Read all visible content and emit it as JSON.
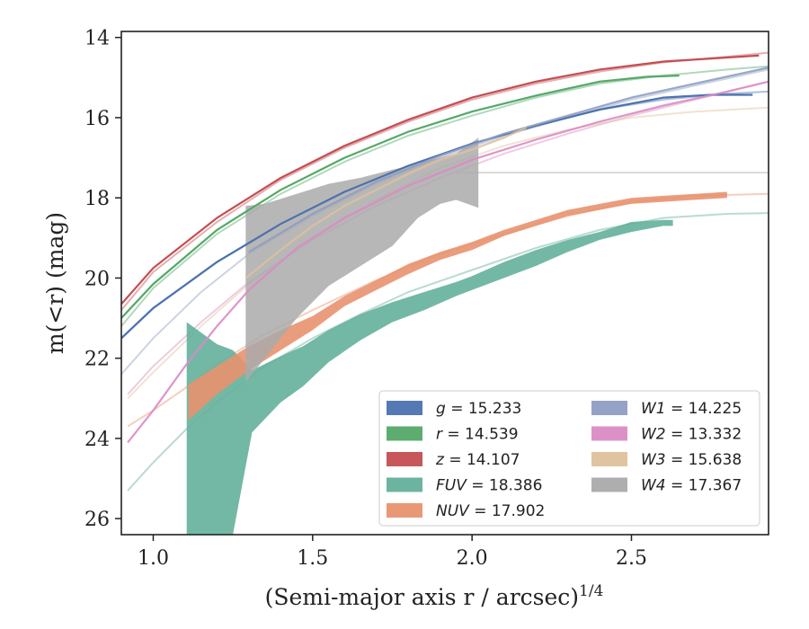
{
  "chart_data": {
    "type": "line",
    "xlabel": "(Semi-major axis r / arcsec)",
    "xlabel_sup": "1/4",
    "ylabel": "m(<r) (mag)",
    "xlim": [
      0.9,
      2.93
    ],
    "ylim": [
      26.4,
      13.85
    ],
    "y_inverted": true,
    "xticks": [
      1.0,
      1.5,
      2.0,
      2.5
    ],
    "xtick_labels": [
      "1.0",
      "1.5",
      "2.0",
      "2.5"
    ],
    "yticks": [
      14,
      16,
      18,
      20,
      22,
      24,
      26
    ],
    "ytick_labels": [
      "14",
      "16",
      "18",
      "20",
      "22",
      "24",
      "26"
    ],
    "grid": false,
    "legend_position": "lower-right",
    "series": [
      {
        "name": "g = 15.233",
        "legend_label": {
          "var": "g",
          "value": "= 15.233"
        },
        "color": "#4c72b0",
        "faint": [
          [
            0.9,
            21.5
          ],
          [
            1.0,
            20.75
          ],
          [
            1.2,
            19.6
          ],
          [
            1.4,
            18.65
          ],
          [
            1.6,
            17.85
          ],
          [
            1.8,
            17.2
          ],
          [
            2.0,
            16.65
          ],
          [
            2.2,
            16.2
          ],
          [
            2.4,
            15.8
          ],
          [
            2.6,
            15.55
          ],
          [
            2.8,
            15.4
          ],
          [
            2.93,
            15.35
          ]
        ],
        "main": [
          [
            0.9,
            21.5
          ],
          [
            1.0,
            20.75
          ],
          [
            1.2,
            19.6
          ],
          [
            1.4,
            18.65
          ],
          [
            1.6,
            17.85
          ],
          [
            1.8,
            17.2
          ],
          [
            2.0,
            16.65
          ],
          [
            2.2,
            16.2
          ],
          [
            2.4,
            15.8
          ],
          [
            2.6,
            15.5
          ],
          [
            2.75,
            15.43
          ],
          [
            2.88,
            15.43
          ]
        ]
      },
      {
        "name": "r = 14.539",
        "legend_label": {
          "var": "r",
          "value": "= 14.539"
        },
        "color": "#55a868",
        "faint": [
          [
            0.9,
            21.2
          ],
          [
            1.0,
            20.25
          ],
          [
            1.2,
            18.9
          ],
          [
            1.4,
            17.9
          ],
          [
            1.6,
            17.1
          ],
          [
            1.8,
            16.45
          ],
          [
            2.0,
            15.95
          ],
          [
            2.2,
            15.5
          ],
          [
            2.4,
            15.15
          ],
          [
            2.6,
            14.95
          ],
          [
            2.8,
            14.8
          ],
          [
            2.93,
            14.72
          ]
        ],
        "main": [
          [
            0.9,
            21.0
          ],
          [
            1.0,
            20.15
          ],
          [
            1.2,
            18.8
          ],
          [
            1.4,
            17.8
          ],
          [
            1.6,
            17.0
          ],
          [
            1.8,
            16.35
          ],
          [
            2.0,
            15.85
          ],
          [
            2.2,
            15.45
          ],
          [
            2.4,
            15.1
          ],
          [
            2.55,
            14.98
          ],
          [
            2.65,
            14.95
          ]
        ]
      },
      {
        "name": "z = 14.107",
        "legend_label": {
          "var": "z",
          "value": "= 14.107"
        },
        "color": "#c44e52",
        "faint": [
          [
            0.9,
            20.8
          ],
          [
            1.0,
            19.85
          ],
          [
            1.2,
            18.6
          ],
          [
            1.4,
            17.55
          ],
          [
            1.6,
            16.75
          ],
          [
            1.8,
            16.1
          ],
          [
            2.0,
            15.55
          ],
          [
            2.2,
            15.15
          ],
          [
            2.4,
            14.85
          ],
          [
            2.6,
            14.62
          ],
          [
            2.8,
            14.48
          ],
          [
            2.93,
            14.38
          ]
        ],
        "main": [
          [
            0.9,
            20.65
          ],
          [
            1.0,
            19.75
          ],
          [
            1.2,
            18.5
          ],
          [
            1.4,
            17.5
          ],
          [
            1.6,
            16.7
          ],
          [
            1.8,
            16.05
          ],
          [
            2.0,
            15.5
          ],
          [
            2.2,
            15.1
          ],
          [
            2.4,
            14.8
          ],
          [
            2.6,
            14.6
          ],
          [
            2.8,
            14.5
          ],
          [
            2.9,
            14.45
          ]
        ]
      },
      {
        "name": "FUV = 18.386",
        "legend_label": {
          "var": "FUV",
          "value": "= 18.386"
        },
        "color": "#64b09b",
        "faint": [
          [
            0.92,
            25.3
          ],
          [
            1.0,
            24.6
          ],
          [
            1.1,
            23.8
          ],
          [
            1.2,
            23.1
          ],
          [
            1.35,
            22.2
          ],
          [
            1.5,
            21.5
          ],
          [
            1.65,
            20.9
          ],
          [
            1.8,
            20.35
          ],
          [
            2.0,
            19.8
          ],
          [
            2.2,
            19.25
          ],
          [
            2.4,
            18.8
          ],
          [
            2.6,
            18.5
          ],
          [
            2.8,
            18.4
          ],
          [
            2.93,
            18.38
          ]
        ],
        "band": [
          [
            1.105,
            21.1,
            26.4
          ],
          [
            1.2,
            21.65,
            26.4
          ],
          [
            1.25,
            21.8,
            26.4
          ],
          [
            1.31,
            22.3,
            23.85
          ],
          [
            1.4,
            21.95,
            23.1
          ],
          [
            1.47,
            21.7,
            22.7
          ],
          [
            1.55,
            21.3,
            22.1
          ],
          [
            1.65,
            20.9,
            21.55
          ],
          [
            1.75,
            20.6,
            21.1
          ],
          [
            1.85,
            20.35,
            20.8
          ],
          [
            1.95,
            20.1,
            20.45
          ],
          [
            2.0,
            19.95,
            20.3
          ],
          [
            2.1,
            19.6,
            20.0
          ],
          [
            2.2,
            19.3,
            19.7
          ],
          [
            2.3,
            19.05,
            19.35
          ],
          [
            2.4,
            18.85,
            19.05
          ],
          [
            2.5,
            18.6,
            18.85
          ],
          [
            2.6,
            18.55,
            18.7
          ],
          [
            2.63,
            18.55,
            18.7
          ]
        ]
      },
      {
        "name": "NUV = 17.902",
        "legend_label": {
          "var": "NUV",
          "value": "= 17.902"
        },
        "color": "#e8926f",
        "faint": [
          [
            0.92,
            23.7
          ],
          [
            1.0,
            23.3
          ],
          [
            1.1,
            22.75
          ],
          [
            1.2,
            22.15
          ],
          [
            1.35,
            21.4
          ],
          [
            1.5,
            20.8
          ],
          [
            1.7,
            20.05
          ],
          [
            1.9,
            19.4
          ],
          [
            2.1,
            18.9
          ],
          [
            2.3,
            18.45
          ],
          [
            2.5,
            18.1
          ],
          [
            2.7,
            17.95
          ],
          [
            2.93,
            17.9
          ]
        ],
        "band": [
          [
            1.11,
            22.65,
            23.55
          ],
          [
            1.2,
            22.2,
            22.9
          ],
          [
            1.3,
            21.7,
            22.3
          ],
          [
            1.4,
            21.3,
            21.8
          ],
          [
            1.5,
            20.95,
            21.3
          ],
          [
            1.6,
            20.45,
            20.7
          ],
          [
            1.7,
            20.05,
            20.3
          ],
          [
            1.8,
            19.65,
            19.9
          ],
          [
            1.9,
            19.35,
            19.55
          ],
          [
            2.0,
            19.1,
            19.3
          ],
          [
            2.1,
            18.8,
            18.95
          ],
          [
            2.2,
            18.55,
            18.7
          ],
          [
            2.3,
            18.3,
            18.45
          ],
          [
            2.4,
            18.15,
            18.3
          ],
          [
            2.5,
            18.0,
            18.15
          ],
          [
            2.6,
            17.95,
            18.1
          ],
          [
            2.7,
            17.9,
            18.05
          ],
          [
            2.8,
            17.85,
            18.0
          ]
        ]
      },
      {
        "name": "W1 = 14.225",
        "legend_label": {
          "var": "W1",
          "value": "= 14.225"
        },
        "color": "#8e9dc2",
        "faint": [
          [
            0.9,
            22.4
          ],
          [
            1.0,
            21.5
          ],
          [
            1.15,
            20.35
          ],
          [
            1.3,
            19.4
          ],
          [
            1.5,
            18.45
          ],
          [
            1.7,
            17.65
          ],
          [
            1.9,
            17.0
          ],
          [
            2.1,
            16.45
          ],
          [
            2.3,
            16.0
          ],
          [
            2.5,
            15.55
          ],
          [
            2.7,
            15.2
          ],
          [
            2.93,
            14.8
          ]
        ],
        "main": [
          [
            1.3,
            19.35
          ],
          [
            1.5,
            18.4
          ],
          [
            1.7,
            17.6
          ],
          [
            1.9,
            16.95
          ],
          [
            2.1,
            16.4
          ],
          [
            2.3,
            15.95
          ],
          [
            2.5,
            15.5
          ],
          [
            2.7,
            15.15
          ],
          [
            2.93,
            14.75
          ]
        ]
      },
      {
        "name": "W2 = 13.332",
        "legend_label": {
          "var": "W2",
          "value": "= 13.332"
        },
        "color": "#da8bc3",
        "faint": [
          [
            0.92,
            22.9
          ],
          [
            1.0,
            22.2
          ],
          [
            1.15,
            21.1
          ],
          [
            1.3,
            20.1
          ],
          [
            1.5,
            19.05
          ],
          [
            1.7,
            18.2
          ],
          [
            1.9,
            17.5
          ],
          [
            2.1,
            16.9
          ],
          [
            2.3,
            16.4
          ],
          [
            2.5,
            15.95
          ],
          [
            2.7,
            15.55
          ],
          [
            2.93,
            15.1
          ]
        ],
        "main": [
          [
            0.92,
            24.1
          ],
          [
            1.0,
            23.3
          ],
          [
            1.1,
            22.2
          ],
          [
            1.2,
            21.2
          ],
          [
            1.3,
            20.3
          ],
          [
            1.45,
            19.25
          ],
          [
            1.6,
            18.5
          ],
          [
            1.8,
            17.7
          ],
          [
            2.0,
            17.05
          ],
          [
            2.2,
            16.55
          ],
          [
            2.4,
            16.1
          ],
          [
            2.6,
            15.7
          ],
          [
            2.8,
            15.35
          ],
          [
            2.93,
            15.1
          ]
        ]
      },
      {
        "name": "W3 = 15.638",
        "legend_label": {
          "var": "W3",
          "value": "= 15.638"
        },
        "color": "#dec19b",
        "faint": [
          [
            0.92,
            23.0
          ],
          [
            1.0,
            22.35
          ],
          [
            1.15,
            21.2
          ],
          [
            1.3,
            20.15
          ],
          [
            1.5,
            19.0
          ],
          [
            1.7,
            18.05
          ],
          [
            1.9,
            17.25
          ],
          [
            2.1,
            16.7
          ],
          [
            2.3,
            16.3
          ],
          [
            2.5,
            16.0
          ],
          [
            2.7,
            15.85
          ],
          [
            2.93,
            15.75
          ]
        ],
        "main": [
          [
            1.29,
            20.0
          ],
          [
            1.4,
            19.3
          ],
          [
            1.5,
            18.7
          ],
          [
            1.6,
            18.2
          ],
          [
            1.7,
            17.8
          ],
          [
            1.8,
            17.4
          ],
          [
            1.9,
            17.05
          ],
          [
            2.0,
            16.8
          ],
          [
            2.1,
            16.5
          ],
          [
            2.17,
            16.25
          ]
        ]
      },
      {
        "name": "W4 = 17.367",
        "legend_label": {
          "var": "W4",
          "value": "= 17.367"
        },
        "color": "#aaaaaa",
        "faint": [
          [
            1.95,
            17.37
          ],
          [
            2.93,
            17.37
          ]
        ],
        "band": [
          [
            1.29,
            18.2,
            22.6
          ],
          [
            1.35,
            18.15,
            22.0
          ],
          [
            1.45,
            17.9,
            21.0
          ],
          [
            1.55,
            17.65,
            20.2
          ],
          [
            1.65,
            17.5,
            19.7
          ],
          [
            1.75,
            17.3,
            19.2
          ],
          [
            1.83,
            17.15,
            18.5
          ],
          [
            1.9,
            17.0,
            18.15
          ],
          [
            1.95,
            16.9,
            18.05
          ],
          [
            2.02,
            16.5,
            18.25
          ]
        ]
      }
    ]
  }
}
